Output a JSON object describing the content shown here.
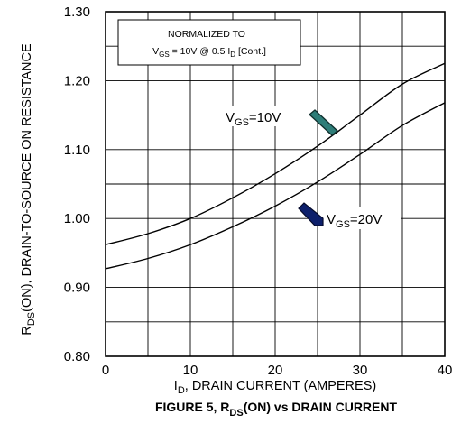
{
  "figure": {
    "caption_pre": "FIGURE 5, R",
    "caption_sub": "DS",
    "caption_post": "(ON) vs DRAIN CURRENT"
  },
  "note": {
    "line1": "NORMALIZED TO",
    "line2_a": "V",
    "line2_sub1": "GS",
    "line2_b": " = 10V @ 0.5 I",
    "line2_sub2": "D",
    "line2_c": " [Cont.]"
  },
  "xaxis": {
    "label_pre": "I",
    "label_sub": "D",
    "label_post": ", DRAIN CURRENT (AMPERES)"
  },
  "yaxis": {
    "label_pre": "R",
    "label_sub": "DS",
    "label_post": "(ON), DRAIN-TO-SOURCE ON RESISTANCE"
  },
  "labels": {
    "vgs10_pre": "V",
    "vgs10_sub": "GS",
    "vgs10_post": "=10V",
    "vgs20_pre": "V",
    "vgs20_sub": "GS",
    "vgs20_post": "=20V"
  },
  "colors": {
    "arrow_10v": "#2e7d78",
    "arrow_20v": "#0d1f6b",
    "line": "#000000"
  },
  "chart_data": {
    "type": "line",
    "xlim": [
      0,
      40
    ],
    "ylim": [
      0.8,
      1.3
    ],
    "x_ticks": [
      0,
      10,
      20,
      30,
      40
    ],
    "y_ticks": [
      0.8,
      0.9,
      1.0,
      1.1,
      1.2,
      1.3
    ],
    "x_tick_labels": [
      "0",
      "10",
      "20",
      "30",
      "40"
    ],
    "y_tick_labels": [
      "0.80",
      "0.90",
      "1.00",
      "1.10",
      "1.20",
      "1.30"
    ],
    "grid": true,
    "x_minor_step": 5,
    "y_minor_step": 0.05,
    "series": [
      {
        "name": "VGS=10V",
        "x": [
          0,
          5,
          10,
          15,
          20,
          25,
          30,
          35,
          40
        ],
        "y": [
          0.962,
          0.978,
          1.0,
          1.03,
          1.065,
          1.105,
          1.15,
          1.195,
          1.225
        ]
      },
      {
        "name": "VGS=20V",
        "x": [
          0,
          5,
          10,
          15,
          20,
          25,
          30,
          35,
          40
        ],
        "y": [
          0.927,
          0.942,
          0.962,
          0.988,
          1.018,
          1.053,
          1.093,
          1.135,
          1.168
        ]
      }
    ]
  }
}
